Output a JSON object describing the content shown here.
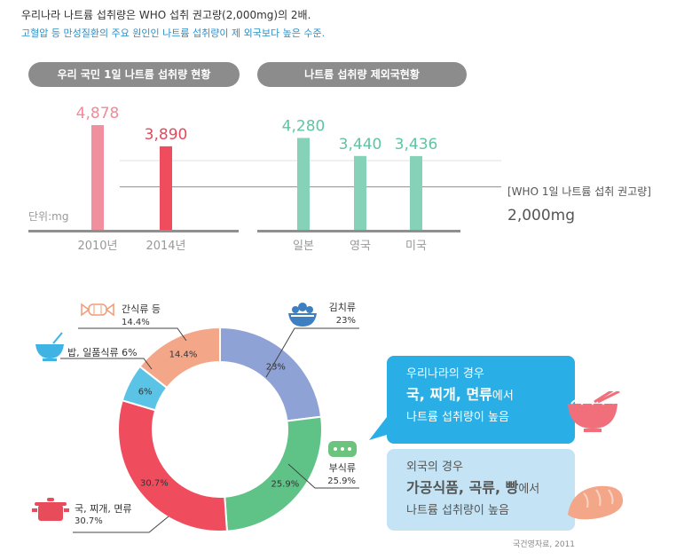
{
  "header": {
    "line1": "우리나라 나트륨 섭취량은 WHO 섭취 권고량(2,000mg)의 2배.",
    "line2": "고혈압 등 만성질환의 주요 원인인 나트륨 섭취량이 제 외국보다 높은 수준."
  },
  "colors": {
    "pink": "#f0909e",
    "red": "#ef4c5e",
    "mint": "#86d2b9",
    "label_pink": "#f28a98",
    "label_red": "#e8485a",
    "label_mint": "#5fc4a4",
    "axis": "#8f8f8f"
  },
  "chart_data": [
    {
      "type": "bar",
      "title": "우리 국민 1일 나트륨 섭취량 현황",
      "unit_label": "단위:mg",
      "categories": [
        "2010년",
        "2014년"
      ],
      "values": [
        4878,
        3890
      ],
      "value_labels": [
        "4,878",
        "3,890"
      ],
      "ylim": [
        0,
        5000
      ]
    },
    {
      "type": "bar",
      "title": "나트륨 섭취량 제외국현황",
      "categories": [
        "일본",
        "영국",
        "미국"
      ],
      "values": [
        4280,
        3440,
        3436
      ],
      "value_labels": [
        "4,280",
        "3,440",
        "3,436"
      ],
      "ylim": [
        0,
        5000
      ],
      "reference_line": {
        "value": 2000,
        "label": "[WHO 1일 나트륨 섭취 권고량]",
        "value_label": "2,000mg"
      }
    },
    {
      "type": "pie",
      "categories": [
        "김치류",
        "부식류",
        "국, 찌개, 면류",
        "밥, 일품식류",
        "간식류 등"
      ],
      "values": [
        23,
        25.9,
        30.7,
        6,
        14.4
      ],
      "slice_labels": [
        "23%",
        "25.9%",
        "30.7%",
        "6%",
        "14.4%"
      ],
      "colors": [
        "#8fa2d5",
        "#5fc286",
        "#ef4c5e",
        "#5bc4e6",
        "#f4a689"
      ],
      "callouts": [
        {
          "name": "김치류",
          "pct": "23%",
          "icon": "bowl-icon"
        },
        {
          "name": "부식류",
          "pct": "25.9%",
          "icon": "bread-icon"
        },
        {
          "name": "국, 찌개, 면류",
          "pct": "30.7%",
          "icon": "pot-icon"
        },
        {
          "name": "밥, 일품식류 6%",
          "pct": "",
          "icon": "rice-bowl-icon"
        },
        {
          "name": "간식류 등",
          "pct": "14.4%",
          "icon": "candy-icon"
        }
      ]
    }
  ],
  "bubbles": {
    "korea": {
      "line1": "우리나라의 경우",
      "line2_bold": "국, 찌개, 면류",
      "line2_rest": "에서",
      "line3": "나트륨 섭취량이 높음"
    },
    "abroad": {
      "line1": "외국의 경우",
      "line2_bold": "가공식품, 곡류, 빵",
      "line2_rest": "에서",
      "line3": "나트륨 섭취량이 높음"
    }
  },
  "source": "국건영자료, 2011"
}
